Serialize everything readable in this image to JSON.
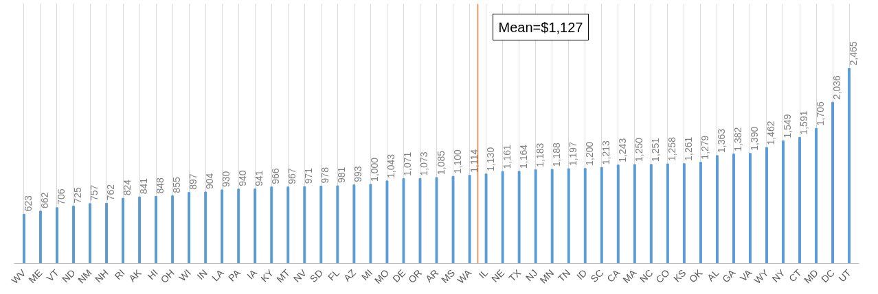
{
  "chart_data": {
    "type": "bar",
    "categories": [
      "WV",
      "ME",
      "VT",
      "ND",
      "NM",
      "NH",
      "RI",
      "AK",
      "HI",
      "OH",
      "WI",
      "IN",
      "LA",
      "PA",
      "IA",
      "KY",
      "MT",
      "NV",
      "SD",
      "FL",
      "AZ",
      "MI",
      "MO",
      "DE",
      "OR",
      "AR",
      "MS",
      "WA",
      "IL",
      "NE",
      "TX",
      "NJ",
      "MN",
      "TN",
      "ID",
      "SC",
      "CA",
      "MA",
      "NC",
      "CO",
      "KS",
      "OK",
      "AL",
      "GA",
      "VA",
      "WY",
      "NY",
      "CT",
      "MD",
      "DC",
      "UT"
    ],
    "values": [
      623,
      662,
      706,
      725,
      757,
      762,
      824,
      841,
      848,
      855,
      897,
      904,
      930,
      940,
      941,
      966,
      967,
      971,
      978,
      981,
      993,
      1000,
      1043,
      1071,
      1073,
      1085,
      1100,
      1114,
      1130,
      1161,
      1164,
      1183,
      1188,
      1197,
      1200,
      1213,
      1243,
      1250,
      1251,
      1258,
      1261,
      1279,
      1363,
      1382,
      1390,
      1462,
      1549,
      1591,
      1706,
      2036,
      2465
    ],
    "color": "#5b9bd5",
    "value_labels": [
      "623",
      "662",
      "706",
      "725",
      "757",
      "762",
      "824",
      "841",
      "848",
      "855",
      "897",
      "904",
      "930",
      "940",
      "941",
      "966",
      "967",
      "971",
      "978",
      "981",
      "993",
      "1,000",
      "1,043",
      "1,071",
      "1,073",
      "1,085",
      "1,100",
      "1,114",
      "1,130",
      "1,161",
      "1,164",
      "1,183",
      "1,188",
      "1,197",
      "1,200",
      "1,213",
      "1,243",
      "1,250",
      "1,251",
      "1,258",
      "1,261",
      "1,279",
      "1,363",
      "1,382",
      "1,390",
      "1,462",
      "1,549",
      "1,591",
      "1,706",
      "2,036",
      "2,465"
    ],
    "grid": "x",
    "ref_lines": [
      {
        "axis": "x",
        "value": "WA",
        "label": "Mean=$1,127",
        "color": "#ed7d31"
      }
    ]
  }
}
